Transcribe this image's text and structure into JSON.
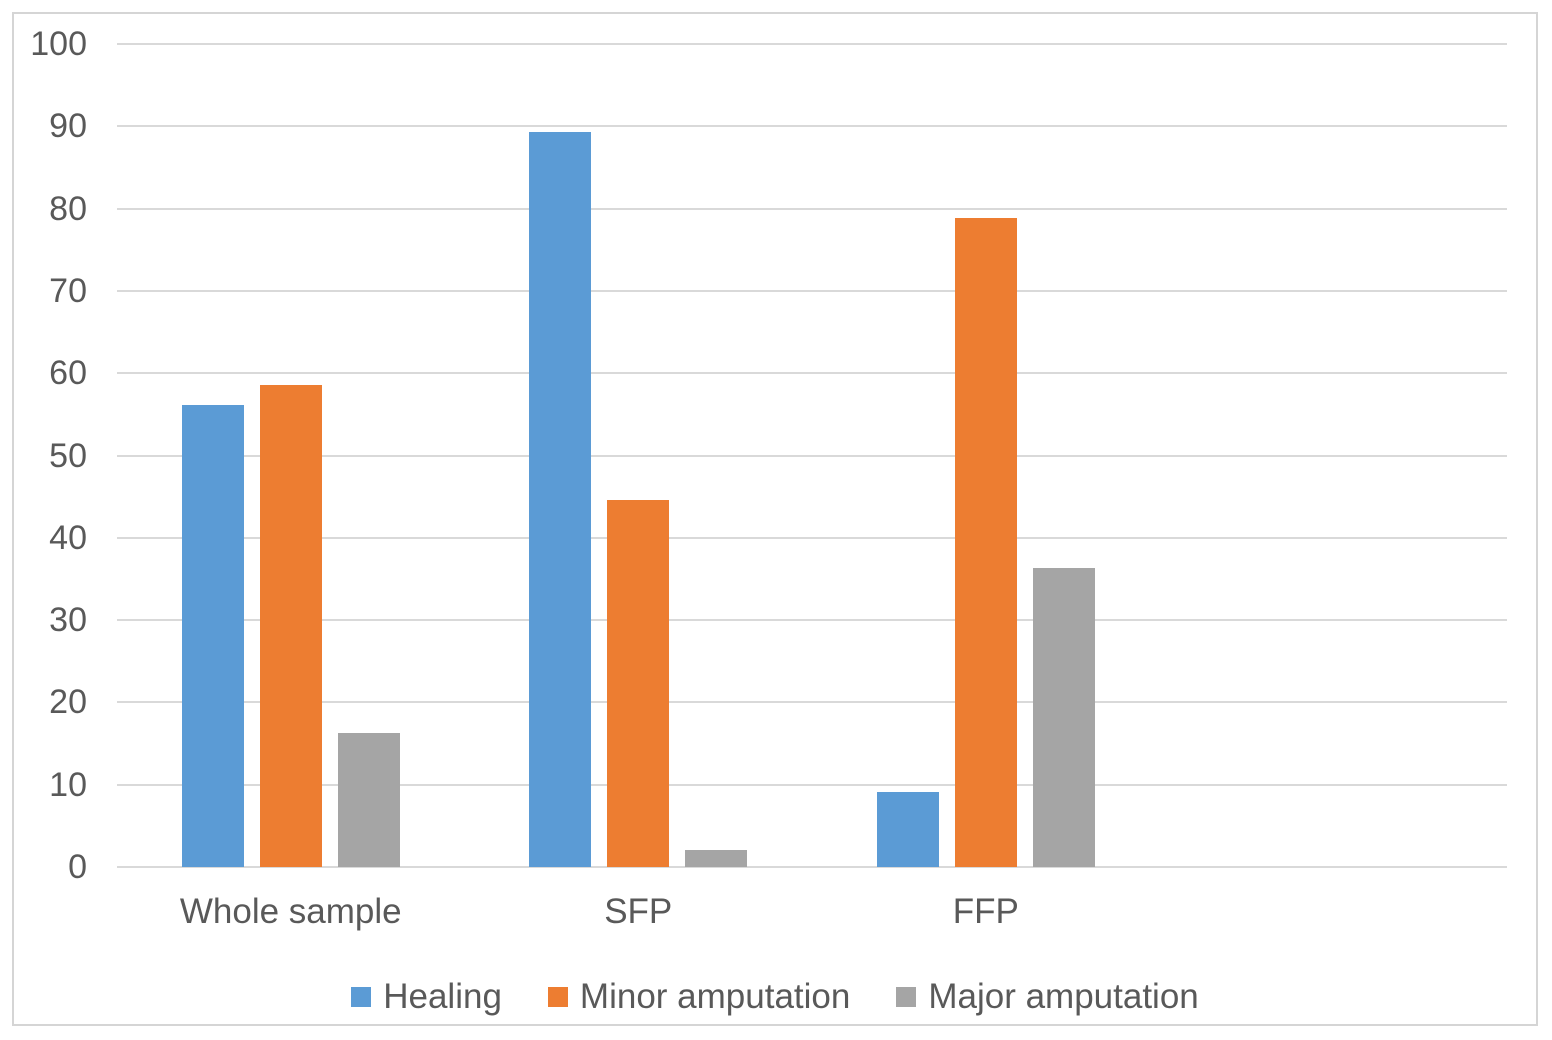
{
  "chart_data": {
    "type": "bar",
    "categories": [
      "Whole sample",
      "SFP",
      "FFP"
    ],
    "series": [
      {
        "name": "Healing",
        "color": "#5B9BD5",
        "values": [
          56.1,
          89.3,
          9.1
        ]
      },
      {
        "name": "Minor amputation",
        "color": "#ED7D31",
        "values": [
          58.6,
          44.6,
          78.8
        ]
      },
      {
        "name": "Major amputation",
        "color": "#A5A5A5",
        "values": [
          16.3,
          2.1,
          36.3
        ]
      }
    ],
    "title": "",
    "xlabel": "",
    "ylabel": "",
    "ylim": [
      0,
      100
    ],
    "yticks": [
      0,
      10,
      20,
      30,
      40,
      50,
      60,
      70,
      80,
      90,
      100
    ],
    "grid": true,
    "legend_position": "bottom",
    "x_slots": 4,
    "colors": {
      "tick_text": "#595959",
      "gridline": "#D9D9D9",
      "frame_border": "#D5D5D5",
      "background": "#FFFFFF"
    }
  }
}
